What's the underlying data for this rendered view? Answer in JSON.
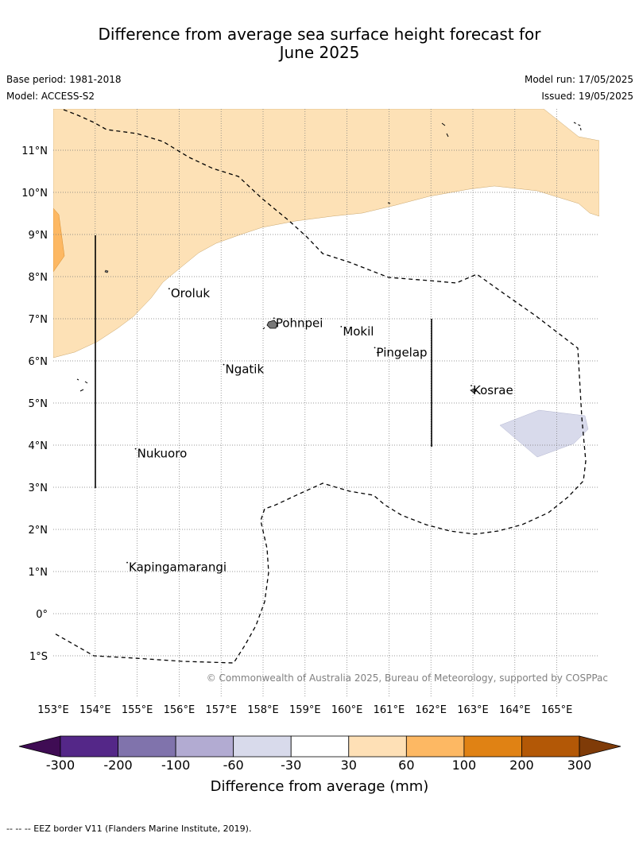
{
  "title_line1": "Difference from average sea surface height forecast for",
  "title_line2": "June 2025",
  "base_period": "Base period: 1981-2018",
  "model": "Model: ACCESS-S2",
  "model_run": "Model run: 17/05/2025",
  "issued": "Issued: 19/05/2025",
  "copyright": "© Commonwealth of Australia 2025, Bureau of Meteorology, supported by COSPPac",
  "footer_note": "--  --  -- EEZ border V11 (Flanders Marine Institute, 2019).",
  "map": {
    "lon_range": [
      153,
      166
    ],
    "lat_range": [
      -2,
      12
    ],
    "lon_ticks": [
      "153°E",
      "154°E",
      "155°E",
      "156°E",
      "157°E",
      "158°E",
      "159°E",
      "160°E",
      "161°E",
      "162°E",
      "163°E",
      "164°E",
      "165°E"
    ],
    "lat_ticks": [
      "11°N",
      "10°N",
      "9°N",
      "8°N",
      "7°N",
      "6°N",
      "5°N",
      "4°N",
      "3°N",
      "2°N",
      "1°N",
      "0°",
      "1°S"
    ],
    "grid": true,
    "places": [
      {
        "name": "Oroluk",
        "lon": 155.8,
        "lat": 7.6
      },
      {
        "name": "Pohnpei",
        "lon": 158.3,
        "lat": 6.9
      },
      {
        "name": "Mokil",
        "lon": 159.9,
        "lat": 6.7
      },
      {
        "name": "Pingelap",
        "lon": 160.7,
        "lat": 6.2
      },
      {
        "name": "Ngatik",
        "lon": 157.1,
        "lat": 5.8
      },
      {
        "name": "Kosrae",
        "lon": 163.0,
        "lat": 5.3
      },
      {
        "name": "Nukuoro",
        "lon": 155.0,
        "lat": 3.8
      },
      {
        "name": "Kapingamarangi",
        "lon": 154.8,
        "lat": 1.1
      }
    ],
    "fill_colors": {
      "30_to_60": "#fde1b6",
      "60_to_100": "#fdb863",
      "-60_to_-30": "#d8daeb"
    }
  },
  "colorbar": {
    "label": "Difference from average (mm)",
    "ticks": [
      "-300",
      "-200",
      "-100",
      "-60",
      "-30",
      "30",
      "60",
      "100",
      "200",
      "300"
    ],
    "colors": [
      "#3f0c54",
      "#542788",
      "#8073ac",
      "#b2abd2",
      "#d8daeb",
      "#ffffff",
      "#fee0b6",
      "#fdb863",
      "#e08214",
      "#b35806",
      "#7f3b08"
    ]
  }
}
